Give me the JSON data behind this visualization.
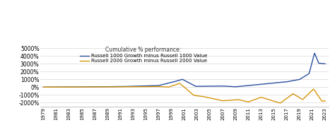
{
  "title": "Cumulative % performance:",
  "legend": [
    "Russell 1000 Growth minus Russell 1000 Value",
    "Russell 2000 Growth minus Russell 2000 Value"
  ],
  "line1_color": "#2b4fa0",
  "line2_color": "#d4950a",
  "ylim": [
    -2500,
    5500
  ],
  "yticks": [
    -2000,
    -1000,
    0,
    1000,
    2000,
    3000,
    4000,
    5000
  ],
  "background_color": "#ffffff",
  "grid_color": "#d8d8d8",
  "line_width": 1.0
}
